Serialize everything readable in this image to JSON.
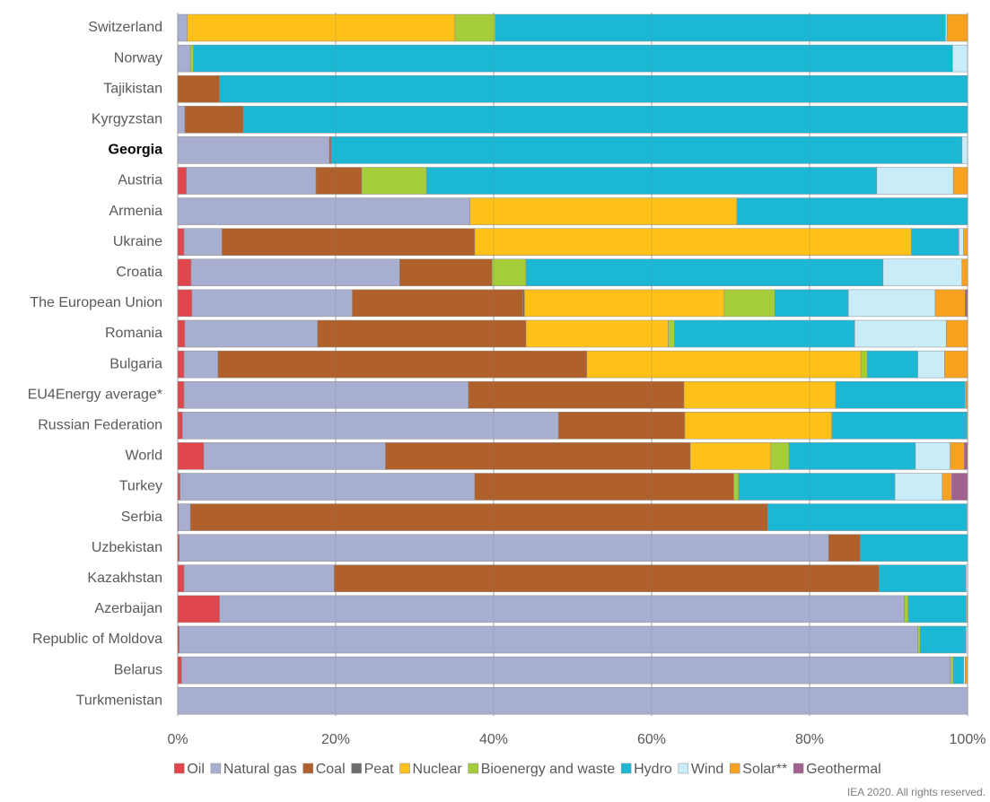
{
  "chart_data": {
    "type": "stacked-bar-horizontal",
    "categories": [
      "Switzerland",
      "Norway",
      "Tajikistan",
      "Kyrgyzstan",
      "Georgia",
      "Austria",
      "Armenia",
      "Ukraine",
      "Croatia",
      "The European Union",
      "Romania",
      "Bulgaria",
      "EU4Energy average*",
      "Russian Federation",
      "World",
      "Turkey",
      "Serbia",
      "Uzbekistan",
      "Kazakhstan",
      "Azerbaijan",
      "Republic of Moldova",
      "Belarus",
      "Turkmenistan"
    ],
    "highlight": "Georgia",
    "series": [
      {
        "name": "Oil",
        "color": "#e0474c",
        "values": [
          0,
          0,
          0,
          0,
          0,
          1.1,
          0,
          0.8,
          1.7,
          1.8,
          0.9,
          0.8,
          0.8,
          0.6,
          3.3,
          0.3,
          0.1,
          0.2,
          0.8,
          5.3,
          0.2,
          0.5,
          0
        ]
      },
      {
        "name": "Natural gas",
        "color": "#a8aed0",
        "values": [
          1.2,
          1.6,
          0,
          0.9,
          19.2,
          16.4,
          37.0,
          4.8,
          26.4,
          20.3,
          16.8,
          4.3,
          36.0,
          47.6,
          23.0,
          37.3,
          1.5,
          82.2,
          19.0,
          86.7,
          93.5,
          97.3,
          100
        ]
      },
      {
        "name": "Coal",
        "color": "#b0602a",
        "values": [
          0,
          0,
          5.3,
          7.4,
          0.2,
          5.8,
          0,
          32.0,
          11.7,
          21.6,
          26.4,
          46.7,
          27.3,
          16.0,
          38.6,
          32.8,
          73.1,
          4.0,
          69.0,
          0,
          0,
          0,
          0
        ]
      },
      {
        "name": "Peat",
        "color": "#6e6e6e",
        "values": [
          0,
          0,
          0,
          0,
          0,
          0,
          0,
          0,
          0,
          0.2,
          0,
          0,
          0,
          0,
          0,
          0,
          0,
          0,
          0,
          0,
          0,
          0,
          0
        ]
      },
      {
        "name": "Nuclear",
        "color": "#fdc11a",
        "values": [
          33.9,
          0,
          0,
          0,
          0,
          0,
          33.8,
          55.3,
          0,
          25.3,
          18.0,
          34.7,
          19.2,
          18.6,
          10.2,
          0,
          0,
          0,
          0,
          0,
          0,
          0,
          0
        ]
      },
      {
        "name": "Bioenergy and waste",
        "color": "#a5cd39",
        "values": [
          5.1,
          0.4,
          0,
          0,
          0,
          8.2,
          0,
          0,
          4.3,
          6.4,
          0.8,
          0.8,
          0,
          0.1,
          2.3,
          0.6,
          0,
          0,
          0,
          0.5,
          0.3,
          0.4,
          0
        ]
      },
      {
        "name": "Hydro",
        "color": "#1bb7d4",
        "values": [
          57.0,
          96.1,
          94.7,
          91.7,
          79.9,
          57.0,
          29.2,
          6.0,
          45.2,
          9.3,
          22.8,
          6.4,
          16.4,
          17.0,
          16.0,
          19.8,
          25.2,
          13.6,
          11.0,
          7.3,
          5.8,
          1.3,
          0
        ]
      },
      {
        "name": "Wind",
        "color": "#c8ecf8",
        "values": [
          0.2,
          1.9,
          0,
          0,
          0.7,
          9.7,
          0,
          0.6,
          10.0,
          11.0,
          11.6,
          3.4,
          0.1,
          0,
          4.4,
          6.0,
          0.1,
          0,
          0.2,
          0.1,
          0.2,
          0.2,
          0
        ]
      },
      {
        "name": "Solar**",
        "color": "#f8a11f",
        "values": [
          2.6,
          0,
          0,
          0,
          0,
          1.8,
          0,
          0.5,
          0.7,
          3.8,
          2.7,
          2.9,
          0.2,
          0.1,
          1.8,
          1.2,
          0,
          0,
          0,
          0.1,
          0,
          0.3,
          0
        ]
      },
      {
        "name": "Geothermal",
        "color": "#a2628f",
        "values": [
          0,
          0,
          0,
          0,
          0,
          0,
          0,
          0,
          0,
          0.3,
          0,
          0,
          0,
          0,
          0.4,
          2.0,
          0,
          0,
          0,
          0,
          0,
          0,
          0
        ]
      }
    ],
    "xlim": [
      0,
      100
    ],
    "xticks": [
      {
        "value": 0,
        "label": "0%"
      },
      {
        "value": 20,
        "label": "20%"
      },
      {
        "value": 40,
        "label": "40%"
      },
      {
        "value": 60,
        "label": "60%"
      },
      {
        "value": 80,
        "label": "80%"
      },
      {
        "value": 100,
        "label": "100%"
      }
    ],
    "grid": true,
    "legend": "bottom",
    "footnote": "IEA 2020. All rights reserved."
  }
}
